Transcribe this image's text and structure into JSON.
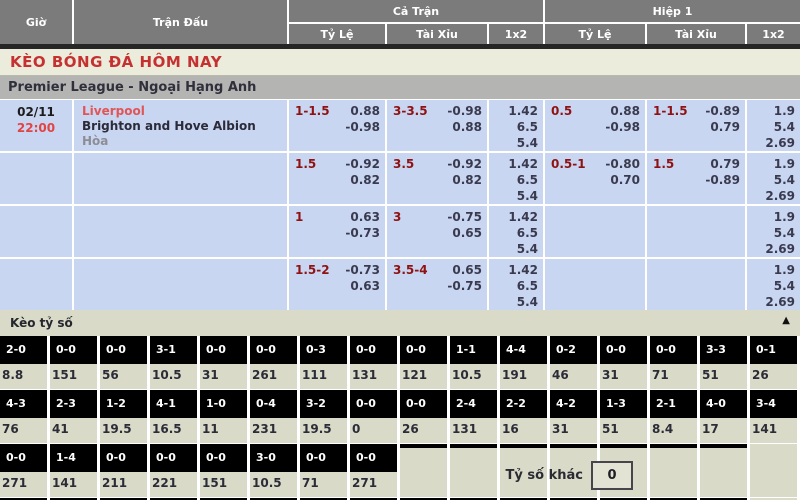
{
  "header": {
    "col_time": "Giờ",
    "col_match": "Trận Đấu",
    "col_full": "Cả Trận",
    "col_half": "Hiệp 1",
    "sub_cols": [
      "Tỷ Lệ",
      "Tài Xỉu",
      "1x2"
    ]
  },
  "page_title": "KÈO BÓNG ĐÁ HÔM NAY",
  "league_title": "Premier League - Ngoại Hạng Anh",
  "match": {
    "date": "02/11",
    "time": "22:00",
    "home": "Liverpool",
    "away": "Brighton and Hove Albion",
    "draw_label": "Hòa"
  },
  "odds_rows": [
    {
      "full": {
        "hdp": {
          "line": "1-1.5",
          "top": "0.88",
          "bottom": "-0.98"
        },
        "ou": {
          "line": "3-3.5",
          "top": "-0.98",
          "bottom": "0.88"
        },
        "x12": [
          "1.42",
          "6.5",
          "5.4"
        ]
      },
      "half": {
        "hdp": {
          "line": "0.5",
          "top": "0.88",
          "bottom": "-0.98"
        },
        "ou": {
          "line": "1-1.5",
          "top": "-0.89",
          "bottom": "0.79"
        },
        "x12": [
          "1.9",
          "5.4",
          "2.69"
        ]
      }
    },
    {
      "full": {
        "hdp": {
          "line": "1.5",
          "top": "-0.92",
          "bottom": "0.82"
        },
        "ou": {
          "line": "3.5",
          "top": "-0.92",
          "bottom": "0.82"
        },
        "x12": [
          "1.42",
          "6.5",
          "5.4"
        ]
      },
      "half": {
        "hdp": {
          "line": "0.5-1",
          "top": "-0.80",
          "bottom": "0.70"
        },
        "ou": {
          "line": "1.5",
          "top": "0.79",
          "bottom": "-0.89"
        },
        "x12": [
          "1.9",
          "5.4",
          "2.69"
        ]
      }
    },
    {
      "full": {
        "hdp": {
          "line": "1",
          "top": "0.63",
          "bottom": "-0.73"
        },
        "ou": {
          "line": "3",
          "top": "-0.75",
          "bottom": "0.65"
        },
        "x12": [
          "1.42",
          "6.5",
          "5.4"
        ]
      },
      "half": {
        "hdp": {
          "line": "",
          "top": "",
          "bottom": ""
        },
        "ou": {
          "line": "",
          "top": "",
          "bottom": ""
        },
        "x12": [
          "1.9",
          "5.4",
          "2.69"
        ]
      }
    },
    {
      "full": {
        "hdp": {
          "line": "1.5-2",
          "top": "-0.73",
          "bottom": "0.63"
        },
        "ou": {
          "line": "3.5-4",
          "top": "0.65",
          "bottom": "-0.75"
        },
        "x12": [
          "1.42",
          "6.5",
          "5.4"
        ]
      },
      "half": {
        "hdp": {
          "line": "",
          "top": "",
          "bottom": ""
        },
        "ou": {
          "line": "",
          "top": "",
          "bottom": ""
        },
        "x12": [
          "1.9",
          "5.4",
          "2.69"
        ]
      }
    }
  ],
  "score_section": {
    "title": "Kèo tỷ số",
    "collapse_icon": "▲",
    "other_label": "Tỷ số khác",
    "other_value": "0",
    "rows": [
      {
        "cells": [
          {
            "score": "2-0",
            "odds": "8.8"
          },
          {
            "score": "0-0",
            "odds": "151"
          },
          {
            "score": "0-0",
            "odds": "56"
          },
          {
            "score": "3-1",
            "odds": "10.5"
          },
          {
            "score": "0-0",
            "odds": "31"
          },
          {
            "score": "0-0",
            "odds": "261"
          },
          {
            "score": "0-3",
            "odds": "111"
          },
          {
            "score": "0-0",
            "odds": "131"
          },
          {
            "score": "0-0",
            "odds": "121"
          },
          {
            "score": "1-1",
            "odds": "10.5"
          },
          {
            "score": "4-4",
            "odds": "191"
          },
          {
            "score": "0-2",
            "odds": "46"
          },
          {
            "score": "0-0",
            "odds": "31"
          },
          {
            "score": "0-0",
            "odds": "71"
          },
          {
            "score": "3-3",
            "odds": "51"
          },
          {
            "score": "0-1",
            "odds": "26"
          }
        ],
        "strips": 0
      },
      {
        "cells": [
          {
            "score": "4-3",
            "odds": "76"
          },
          {
            "score": "2-3",
            "odds": "41"
          },
          {
            "score": "1-2",
            "odds": "19.5"
          },
          {
            "score": "4-1",
            "odds": "16.5"
          },
          {
            "score": "1-0",
            "odds": "11"
          },
          {
            "score": "0-4",
            "odds": "231"
          },
          {
            "score": "3-2",
            "odds": "19.5"
          },
          {
            "score": "0-0",
            "odds": "0"
          },
          {
            "score": "0-0",
            "odds": "26"
          },
          {
            "score": "2-4",
            "odds": "131"
          },
          {
            "score": "2-2",
            "odds": "16"
          },
          {
            "score": "4-2",
            "odds": "31"
          },
          {
            "score": "1-3",
            "odds": "51"
          },
          {
            "score": "2-1",
            "odds": "8.4"
          },
          {
            "score": "4-0",
            "odds": "17"
          },
          {
            "score": "3-4",
            "odds": "141"
          }
        ],
        "strips": 0
      },
      {
        "cells": [
          {
            "score": "0-0",
            "odds": "271"
          },
          {
            "score": "1-4",
            "odds": "141"
          },
          {
            "score": "0-0",
            "odds": "211"
          },
          {
            "score": "0-0",
            "odds": "221"
          },
          {
            "score": "0-0",
            "odds": "151"
          },
          {
            "score": "3-0",
            "odds": "10.5"
          },
          {
            "score": "0-0",
            "odds": "71"
          },
          {
            "score": "0-0",
            "odds": "271"
          }
        ],
        "strips": 7
      }
    ],
    "cutoff_cols": 15
  },
  "colors": {
    "accent_red": "#c53131",
    "home_team_red": "#e05555",
    "time_red": "#e04444",
    "handicap_maroon": "#8e1212",
    "odds_cell_blue": "#c9d6f1",
    "header_gray": "#7b7b7b",
    "section_beige": "#d9dbc8",
    "score_box_black": "#000000"
  }
}
